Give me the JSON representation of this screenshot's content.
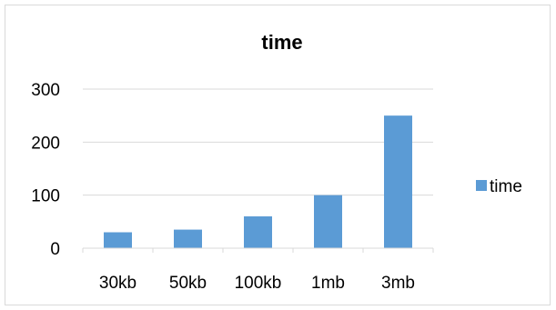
{
  "chart_data": {
    "type": "bar",
    "title": "time",
    "categories": [
      "30kb",
      "50kb",
      "100kb",
      "1mb",
      "3mb"
    ],
    "series": [
      {
        "name": "time",
        "values": [
          30,
          35,
          60,
          100,
          250
        ]
      }
    ],
    "ylim": [
      0,
      300
    ],
    "yticks": [
      0,
      100,
      200,
      300
    ],
    "grid": true,
    "legend": "right",
    "color": "#5b9bd5"
  }
}
